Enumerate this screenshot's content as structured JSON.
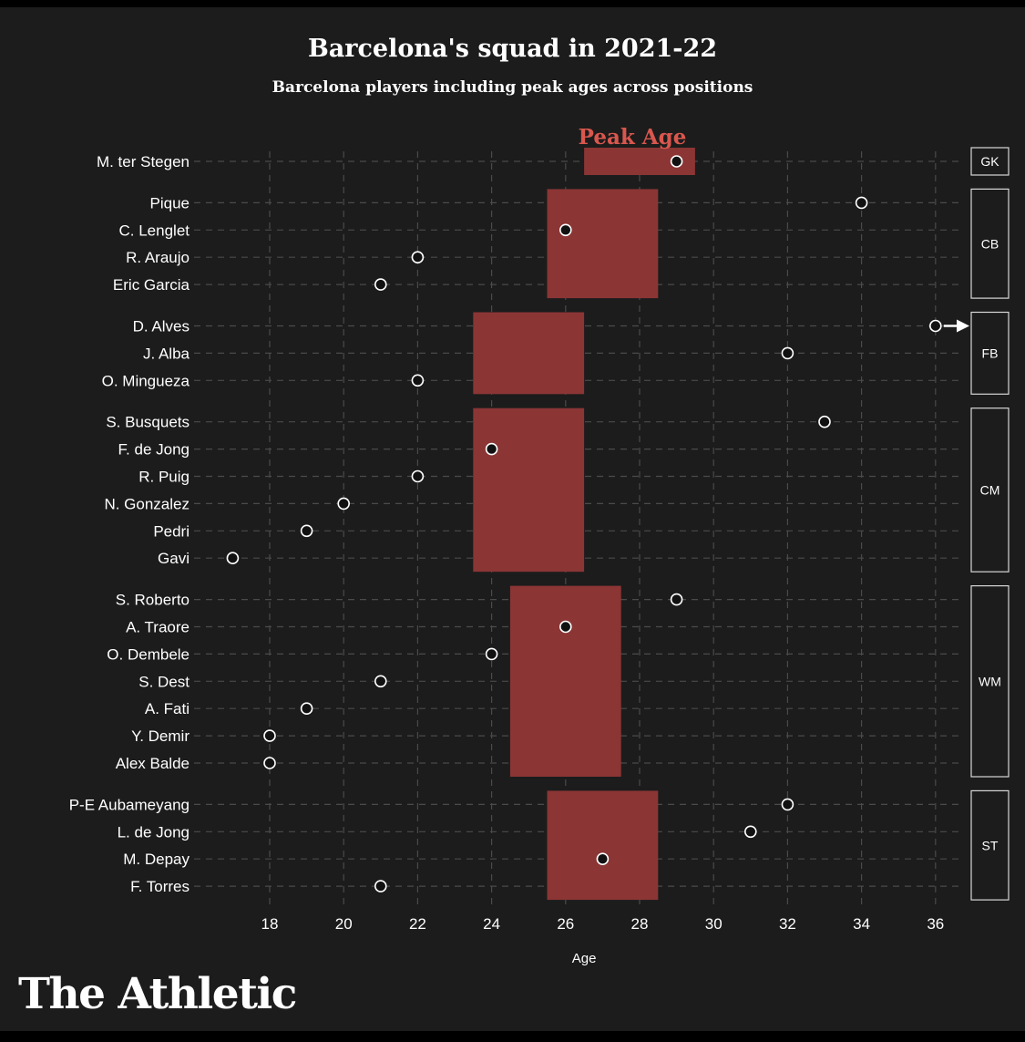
{
  "header": {
    "title": "Barcelona's squad in 2021-22",
    "subtitle": "Barcelona players including peak ages across positions"
  },
  "brand": {
    "logo_text": "The Athletic"
  },
  "colors": {
    "background": "#1c1c1c",
    "peak_band": "#8b3535",
    "peak_label": "#d9574e",
    "text": "#ffffff",
    "grid": "#4a4a4a"
  },
  "chart_data": {
    "type": "scatter",
    "title": "Barcelona's squad in 2021-22",
    "subtitle": "Barcelona players including peak ages across positions",
    "xlabel": "Age",
    "ylabel": "",
    "xlim": [
      16,
      37
    ],
    "xticks": [
      18,
      20,
      22,
      24,
      26,
      28,
      30,
      32,
      34,
      36
    ],
    "grid": true,
    "peak_label": "Peak Age",
    "overflow_arrow_player": "D. Alves",
    "groups": [
      {
        "position": "GK",
        "peak_range": [
          26.5,
          29.5
        ],
        "players": [
          {
            "name": "M. ter Stegen",
            "age": 29
          }
        ]
      },
      {
        "position": "CB",
        "peak_range": [
          25.5,
          28.5
        ],
        "players": [
          {
            "name": "Pique",
            "age": 34
          },
          {
            "name": "C. Lenglet",
            "age": 26
          },
          {
            "name": "R. Araujo",
            "age": 22
          },
          {
            "name": "Eric Garcia",
            "age": 21
          }
        ]
      },
      {
        "position": "FB",
        "peak_range": [
          23.5,
          26.5
        ],
        "players": [
          {
            "name": "D. Alves",
            "age": 36
          },
          {
            "name": "J. Alba",
            "age": 32
          },
          {
            "name": "O. Mingueza",
            "age": 22
          }
        ]
      },
      {
        "position": "CM",
        "peak_range": [
          23.5,
          26.5
        ],
        "players": [
          {
            "name": "S. Busquets",
            "age": 33
          },
          {
            "name": "F. de Jong",
            "age": 24
          },
          {
            "name": "R. Puig",
            "age": 22
          },
          {
            "name": "N. Gonzalez",
            "age": 20
          },
          {
            "name": "Pedri",
            "age": 19
          },
          {
            "name": "Gavi",
            "age": 17
          }
        ]
      },
      {
        "position": "WM",
        "peak_range": [
          24.5,
          27.5
        ],
        "players": [
          {
            "name": "S. Roberto",
            "age": 29
          },
          {
            "name": "A. Traore",
            "age": 26
          },
          {
            "name": "O. Dembele",
            "age": 24
          },
          {
            "name": "S. Dest",
            "age": 21
          },
          {
            "name": "A. Fati",
            "age": 19
          },
          {
            "name": "Y. Demir",
            "age": 18
          },
          {
            "name": "Alex Balde",
            "age": 18
          }
        ]
      },
      {
        "position": "ST",
        "peak_range": [
          25.5,
          28.5
        ],
        "players": [
          {
            "name": "P-E Aubameyang",
            "age": 32
          },
          {
            "name": "L. de Jong",
            "age": 31
          },
          {
            "name": "M. Depay",
            "age": 27
          },
          {
            "name": "F. Torres",
            "age": 21
          }
        ]
      }
    ]
  }
}
